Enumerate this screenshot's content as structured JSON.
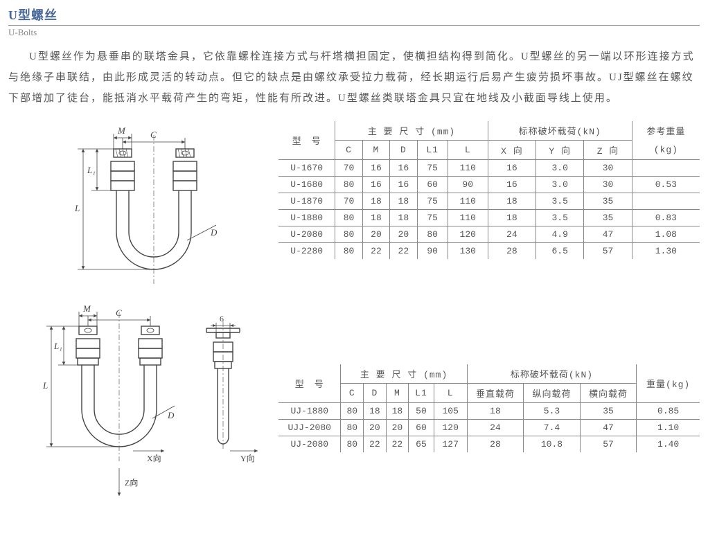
{
  "title_cn": "U型螺丝",
  "title_en": "U-Bolts",
  "description": "U型螺丝作为悬垂串的联塔金具，它依靠螺栓连接方式与杆塔横担固定，使横担结构得到简化。U型螺丝的另一端以环形连接方式与绝缘子串联结，由此形成灵活的转动点。但它的缺点是由螺纹承受拉力载荷，经长期运行后易产生疲劳损坏事故。UJ型螺丝在螺纹下部增加了徒台，能抵消水平载荷产生的弯矩，性能有所改进。U型螺丝类联塔金具只宜在地线及小截面导线上使用。",
  "table1": {
    "h_model": "型　号",
    "h_dims": "主 要 尺 寸  (mm)",
    "h_load": "标称破坏载荷(kN)",
    "h_weight": "参考重量",
    "h_weight_u": "(kg)",
    "h_C": "C",
    "h_M": "M",
    "h_D": "D",
    "h_L1": "L1",
    "h_L": "L",
    "h_X": "X 向",
    "h_Y": "Y 向",
    "h_Z": "Z 向",
    "rows": [
      {
        "m": "U-1670",
        "c": "70",
        "mm": "16",
        "d": "16",
        "l1": "75",
        "l": "110",
        "x": "16",
        "y": "3.0",
        "z": "30",
        "w": ""
      },
      {
        "m": "U-1680",
        "c": "80",
        "mm": "16",
        "d": "16",
        "l1": "60",
        "l": "90",
        "x": "16",
        "y": "3.0",
        "z": "30",
        "w": "0.53"
      },
      {
        "m": "U-1870",
        "c": "70",
        "mm": "18",
        "d": "18",
        "l1": "75",
        "l": "110",
        "x": "18",
        "y": "3.5",
        "z": "35",
        "w": ""
      },
      {
        "m": "U-1880",
        "c": "80",
        "mm": "18",
        "d": "18",
        "l1": "75",
        "l": "110",
        "x": "18",
        "y": "3.5",
        "z": "35",
        "w": "0.83"
      },
      {
        "m": "U-2080",
        "c": "80",
        "mm": "20",
        "d": "20",
        "l1": "80",
        "l": "120",
        "x": "24",
        "y": "4.9",
        "z": "47",
        "w": "1.08"
      },
      {
        "m": "U-2280",
        "c": "80",
        "mm": "22",
        "d": "22",
        "l1": "90",
        "l": "130",
        "x": "28",
        "y": "6.5",
        "z": "57",
        "w": "1.30"
      }
    ]
  },
  "table2": {
    "h_model": "型　号",
    "h_dims": "主 要 尺 寸  (mm)",
    "h_load": "标称破坏载荷(kN)",
    "h_weight": "重量(kg)",
    "h_C": "C",
    "h_D": "D",
    "h_M": "M",
    "h_L1": "L1",
    "h_L": "L",
    "h_v": "垂直载荷",
    "h_lo": "纵向载荷",
    "h_la": "横向载荷",
    "rows": [
      {
        "m": "UJ-1880",
        "c": "80",
        "d": "18",
        "mm": "18",
        "l1": "50",
        "l": "105",
        "v": "18",
        "lo": "5.3",
        "la": "35",
        "w": "0.85"
      },
      {
        "m": "UJJ-2080",
        "c": "80",
        "d": "20",
        "mm": "20",
        "l1": "60",
        "l": "120",
        "v": "24",
        "lo": "7.4",
        "la": "47",
        "w": "1.10"
      },
      {
        "m": "UJ-2080",
        "c": "80",
        "d": "22",
        "mm": "22",
        "l1": "65",
        "l": "127",
        "v": "28",
        "lo": "10.8",
        "la": "57",
        "w": "1.40"
      }
    ]
  },
  "labels": {
    "M": "M",
    "C": "C",
    "L": "L",
    "L1": "L₁",
    "D": "D",
    "six": "6",
    "X": "X向",
    "Y": "Y向",
    "Z": "Z向"
  }
}
